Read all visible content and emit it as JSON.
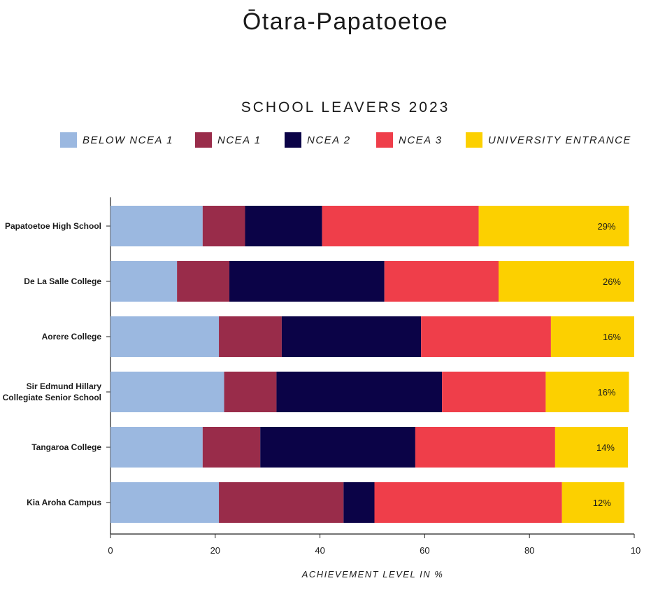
{
  "page": {
    "title": "Ōtara-Papatoetoe"
  },
  "legend": {
    "items": [
      {
        "label": "BELOW NCEA 1",
        "color": "#9bb8e0"
      },
      {
        "label": "NCEA 1",
        "color": "#992c4a"
      },
      {
        "label": "NCEA 2",
        "color": "#0b0347"
      },
      {
        "label": "NCEA 3",
        "color": "#ef3e4a"
      },
      {
        "label": "UNIVERSITY ENTRANCE",
        "color": "#fcd000"
      }
    ]
  },
  "chart_data": {
    "type": "bar",
    "orientation": "horizontal",
    "stacked": true,
    "title": "SCHOOL LEAVERS 2023",
    "xlabel": "ACHIEVEMENT LEVEL IN %",
    "ylabel": "",
    "xlim": [
      0,
      100
    ],
    "xticks": [
      "0",
      "20",
      "40",
      "60",
      "80",
      "10"
    ],
    "grid": false,
    "legend_position": "top",
    "categories": [
      "Papatoetoe High School",
      "De La Salle College",
      "Aorere College",
      "Sir Edmund Hillary\nCollegiate Senior School",
      "Tangaroa College",
      "Kia Aroha Campus"
    ],
    "series": [
      {
        "name": "BELOW NCEA 1",
        "color": "#9bb8e0",
        "values": [
          17.6,
          12.7,
          20.7,
          21.7,
          17.6,
          20.7
        ]
      },
      {
        "name": "NCEA 1",
        "color": "#992c4a",
        "values": [
          8.1,
          10.0,
          12.0,
          10.0,
          11.0,
          23.8
        ]
      },
      {
        "name": "NCEA 2",
        "color": "#0b0347",
        "values": [
          14.7,
          29.6,
          26.6,
          31.6,
          29.6,
          5.9
        ]
      },
      {
        "name": "NCEA 3",
        "color": "#ef3e4a",
        "values": [
          29.9,
          21.8,
          24.8,
          19.8,
          26.7,
          35.8
        ]
      },
      {
        "name": "UNIVERSITY ENTRANCE",
        "color": "#fcd000",
        "values": [
          28.7,
          25.9,
          15.9,
          15.9,
          13.9,
          11.9
        ]
      }
    ],
    "data_labels": [
      "29%",
      "26%",
      "16%",
      "16%",
      "14%",
      "12%"
    ]
  }
}
